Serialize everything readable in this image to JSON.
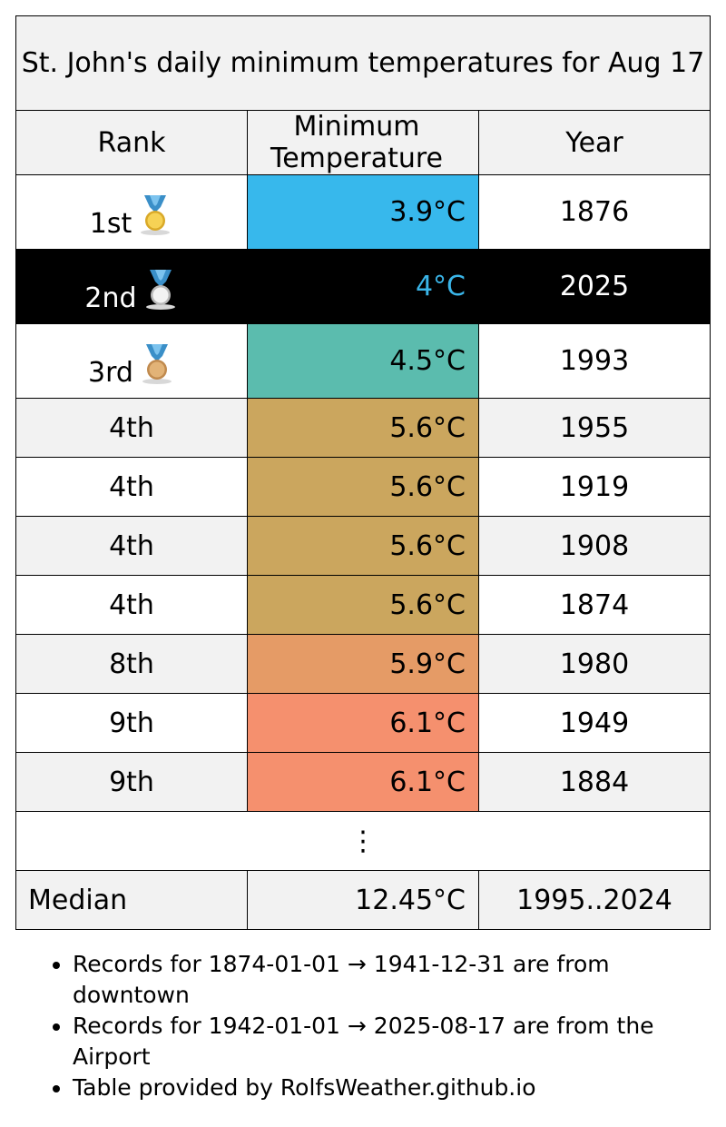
{
  "chart_data": {
    "type": "table",
    "title": "St. John's daily minimum temperatures for Aug 17",
    "columns": [
      "Rank",
      "Minimum Temperature",
      "Year"
    ],
    "rows": [
      {
        "rank": "1st",
        "temp": "3.9°C",
        "value": 3.9,
        "year": "1876",
        "medal": "gold",
        "color": "#37b8ec",
        "highlight": false
      },
      {
        "rank": "2nd",
        "temp": "4°C",
        "value": 4.0,
        "year": "2025",
        "medal": "silver",
        "color": "#000000",
        "highlight": true
      },
      {
        "rank": "3rd",
        "temp": "4.5°C",
        "value": 4.5,
        "year": "1993",
        "medal": "bronze",
        "color": "#5bbcae",
        "highlight": false
      },
      {
        "rank": "4th",
        "temp": "5.6°C",
        "value": 5.6,
        "year": "1955",
        "medal": "",
        "color": "#cba65e",
        "highlight": false
      },
      {
        "rank": "4th",
        "temp": "5.6°C",
        "value": 5.6,
        "year": "1919",
        "medal": "",
        "color": "#cba65e",
        "highlight": false
      },
      {
        "rank": "4th",
        "temp": "5.6°C",
        "value": 5.6,
        "year": "1908",
        "medal": "",
        "color": "#cba65e",
        "highlight": false
      },
      {
        "rank": "4th",
        "temp": "5.6°C",
        "value": 5.6,
        "year": "1874",
        "medal": "",
        "color": "#cba65e",
        "highlight": false
      },
      {
        "rank": "8th",
        "temp": "5.9°C",
        "value": 5.9,
        "year": "1980",
        "medal": "",
        "color": "#e59b66",
        "highlight": false
      },
      {
        "rank": "9th",
        "temp": "6.1°C",
        "value": 6.1,
        "year": "1949",
        "medal": "",
        "color": "#f5906e",
        "highlight": false
      },
      {
        "rank": "9th",
        "temp": "6.1°C",
        "value": 6.1,
        "year": "1884",
        "medal": "",
        "color": "#f5906e",
        "highlight": false
      }
    ],
    "ellipsis": "⋮",
    "median": {
      "label": "Median",
      "temp": "12.45°C",
      "years": "1995..2024"
    }
  },
  "notes": [
    "Records for 1874-01-01 → 1941-12-31 are from downtown",
    "Records for 1942-01-01 → 2025-08-17 are from the Airport",
    "Table provided by RolfsWeather.github.io"
  ]
}
